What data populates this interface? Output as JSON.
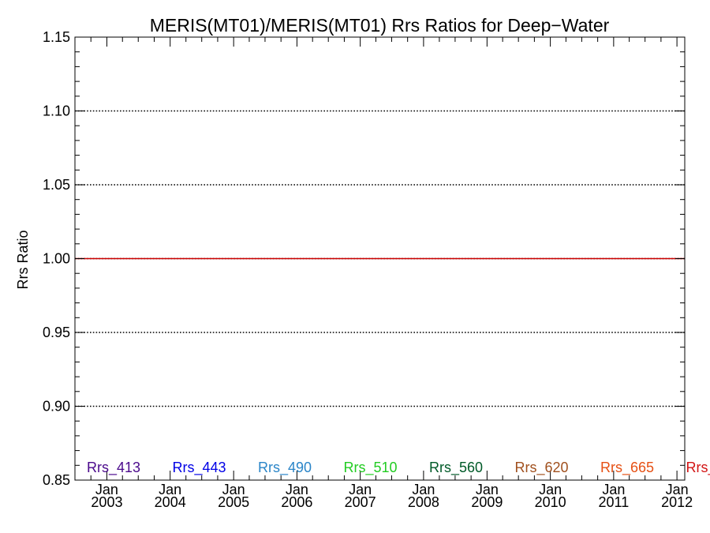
{
  "chart_data": {
    "type": "line",
    "title": "MERIS(MT01)/MERIS(MT01)  Rrs Ratios for Deep−Water",
    "ylabel": "Rrs Ratio",
    "xlabel": "",
    "ylim": [
      0.85,
      1.15
    ],
    "yticks": [
      "0.85",
      "0.90",
      "0.95",
      "1.00",
      "1.05",
      "1.10",
      "1.15"
    ],
    "ytick_values": [
      0.85,
      0.9,
      0.95,
      1.0,
      1.05,
      1.1,
      1.15
    ],
    "xlim": [
      "2002-07-01",
      "2012-02-15"
    ],
    "xticks": [
      {
        "date": "2003-01-01",
        "month": "Jan",
        "year": "2003"
      },
      {
        "date": "2004-01-01",
        "month": "Jan",
        "year": "2004"
      },
      {
        "date": "2005-01-01",
        "month": "Jan",
        "year": "2005"
      },
      {
        "date": "2006-01-01",
        "month": "Jan",
        "year": "2006"
      },
      {
        "date": "2007-01-01",
        "month": "Jan",
        "year": "2007"
      },
      {
        "date": "2008-01-01",
        "month": "Jan",
        "year": "2008"
      },
      {
        "date": "2009-01-01",
        "month": "Jan",
        "year": "2009"
      },
      {
        "date": "2010-01-01",
        "month": "Jan",
        "year": "2010"
      },
      {
        "date": "2011-01-01",
        "month": "Jan",
        "year": "2011"
      },
      {
        "date": "2012-01-01",
        "month": "Jan",
        "year": "2012"
      }
    ],
    "grid": "dotted horizontal at y ticks",
    "reference_line": {
      "y": 1.0,
      "color": "#cc0000"
    },
    "series": [
      {
        "name": "Rrs_413",
        "color": "#4b0a8c",
        "x": [
          "2002-07-01",
          "2012-02-15"
        ],
        "y": [
          1.0,
          1.0
        ]
      },
      {
        "name": "Rrs_443",
        "color": "#0000e6",
        "x": [
          "2002-07-01",
          "2012-02-15"
        ],
        "y": [
          1.0,
          1.0
        ]
      },
      {
        "name": "Rrs_490",
        "color": "#2a85c8",
        "x": [
          "2002-07-01",
          "2012-02-15"
        ],
        "y": [
          1.0,
          1.0
        ]
      },
      {
        "name": "Rrs_510",
        "color": "#22cc22",
        "x": [
          "2002-07-01",
          "2012-02-15"
        ],
        "y": [
          1.0,
          1.0
        ]
      },
      {
        "name": "Rrs_560",
        "color": "#005a28",
        "x": [
          "2002-07-01",
          "2012-02-15"
        ],
        "y": [
          1.0,
          1.0
        ]
      },
      {
        "name": "Rrs_620",
        "color": "#a0501e",
        "x": [
          "2002-07-01",
          "2012-02-15"
        ],
        "y": [
          1.0,
          1.0
        ]
      },
      {
        "name": "Rrs_665",
        "color": "#e65014",
        "x": [
          "2002-07-01",
          "2012-02-15"
        ],
        "y": [
          1.0,
          1.0
        ]
      },
      {
        "name": "Rrs_",
        "color": "#d21414",
        "x": [
          "2002-07-01",
          "2012-02-15"
        ],
        "y": [
          1.0,
          1.0
        ]
      }
    ],
    "legend_placement": "bottom inside plot, horizontal"
  }
}
